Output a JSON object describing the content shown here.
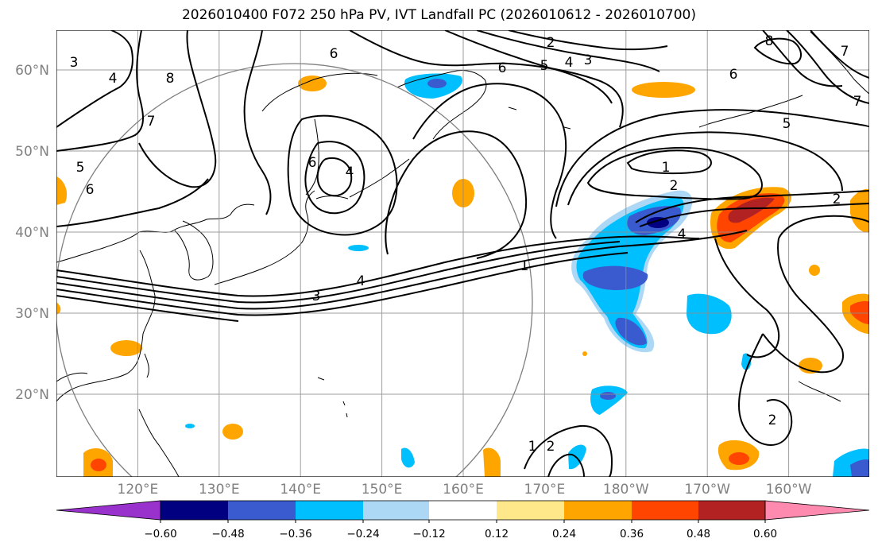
{
  "title": "2026010400 F072 250 hPa PV, IVT Landfall PC (2026010612 - 2026010700)",
  "map": {
    "lon_labels": [
      "120°E",
      "130°E",
      "140°E",
      "150°E",
      "160°E",
      "170°E",
      "180°W",
      "170°W",
      "160°W"
    ],
    "lat_labels": [
      "60°N",
      "50°N",
      "40°N",
      "30°N",
      "20°N"
    ],
    "contour_labels": [
      "3",
      "4",
      "8",
      "7",
      "5",
      "6",
      "6",
      "4",
      "6",
      "2",
      "6",
      "5",
      "4",
      "3",
      "8",
      "6",
      "7",
      "7",
      "5",
      "1",
      "2",
      "4",
      "2",
      "1",
      "4",
      "3",
      "1",
      "2",
      "2"
    ]
  },
  "colorbar": {
    "tick_labels": [
      "−0.60",
      "−0.48",
      "−0.36",
      "−0.24",
      "−0.12",
      "0.12",
      "0.24",
      "0.36",
      "0.48",
      "0.60"
    ],
    "colors": {
      "under": "#9932cc",
      "bins": [
        "#000080",
        "#3a5bd0",
        "#00bfff",
        "#add8f5",
        "#ffffff",
        "#ffe88a",
        "#ffa500",
        "#ff4500",
        "#b22222"
      ],
      "over": "#ff8ab0"
    }
  }
}
